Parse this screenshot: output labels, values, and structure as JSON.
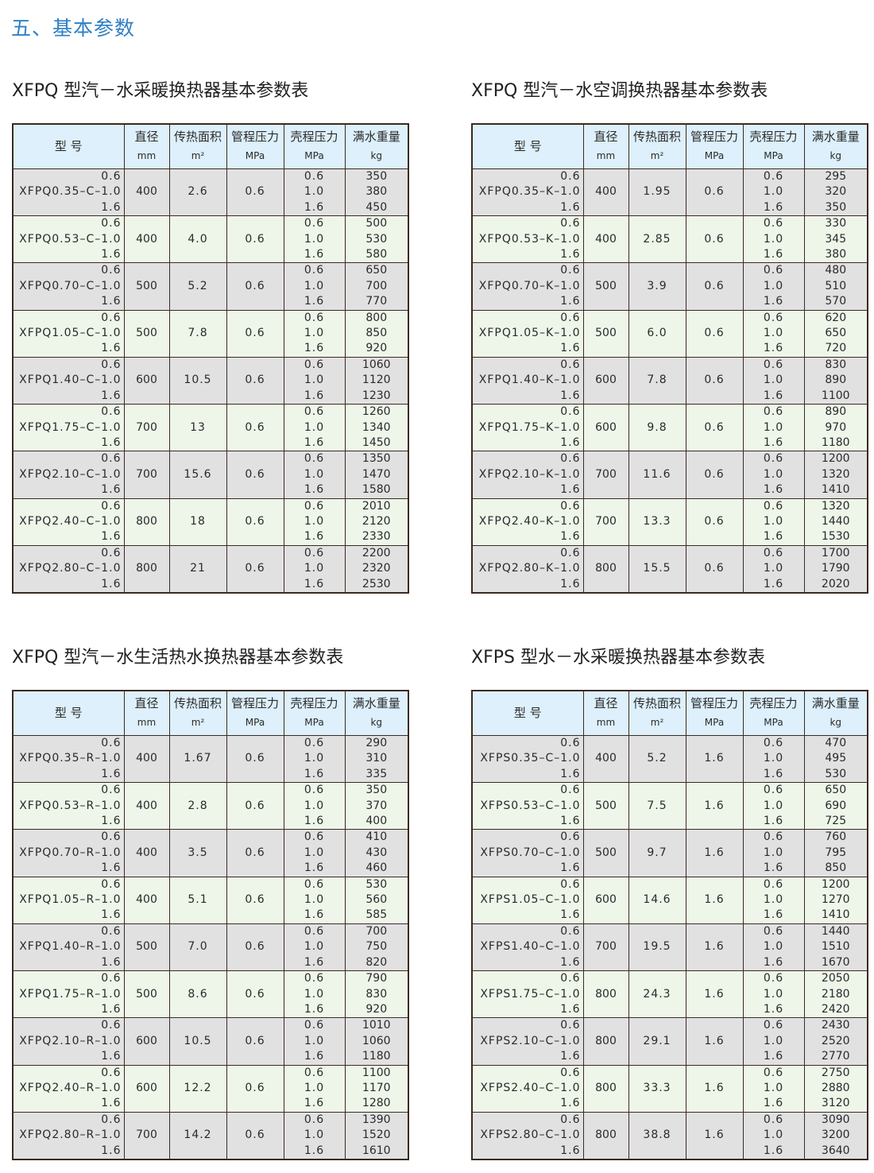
{
  "heading": "五、基本参数",
  "colors": {
    "heading": "#2f7fc4",
    "header_bg": "#ddf0fb",
    "row_gray": "#e1e1e1",
    "row_green": "#eef6ea",
    "border": "#3b2a20"
  },
  "header": {
    "model": "型  号",
    "dia": "直径",
    "dia_unit": "mm",
    "area": "传热面积",
    "area_unit": "m²",
    "tube": "管程压力",
    "tube_unit": "MPa",
    "shell": "壳程压力",
    "shell_unit": "MPa",
    "weight": "满水重量",
    "weight_unit": "kg"
  },
  "pressures": [
    "0.6",
    "1.0",
    "1.6"
  ],
  "tables": [
    {
      "title": "XFPQ 型汽－水采暖换热器基本参数表",
      "rows": [
        {
          "model": "XFPQ0.35–C–",
          "dia": "400",
          "area": "2.6",
          "tube": "0.6",
          "weights": [
            "350",
            "380",
            "450"
          ]
        },
        {
          "model": "XFPQ0.53–C–",
          "dia": "400",
          "area": "4.0",
          "tube": "0.6",
          "weights": [
            "500",
            "530",
            "580"
          ]
        },
        {
          "model": "XFPQ0.70–C–",
          "dia": "500",
          "area": "5.2",
          "tube": "0.6",
          "weights": [
            "650",
            "700",
            "770"
          ]
        },
        {
          "model": "XFPQ1.05–C–",
          "dia": "500",
          "area": "7.8",
          "tube": "0.6",
          "weights": [
            "800",
            "850",
            "920"
          ]
        },
        {
          "model": "XFPQ1.40–C–",
          "dia": "600",
          "area": "10.5",
          "tube": "0.6",
          "weights": [
            "1060",
            "1120",
            "1230"
          ]
        },
        {
          "model": "XFPQ1.75–C–",
          "dia": "700",
          "area": "13",
          "tube": "0.6",
          "weights": [
            "1260",
            "1340",
            "1450"
          ]
        },
        {
          "model": "XFPQ2.10–C–",
          "dia": "700",
          "area": "15.6",
          "tube": "0.6",
          "weights": [
            "1350",
            "1470",
            "1580"
          ]
        },
        {
          "model": "XFPQ2.40–C–",
          "dia": "800",
          "area": "18",
          "tube": "0.6",
          "weights": [
            "2010",
            "2120",
            "2330"
          ]
        },
        {
          "model": "XFPQ2.80–C–",
          "dia": "800",
          "area": "21",
          "tube": "0.6",
          "weights": [
            "2200",
            "2320",
            "2530"
          ]
        }
      ]
    },
    {
      "title": "XFPQ 型汽－水空调换热器基本参数表",
      "rows": [
        {
          "model": "XFPQ0.35–K–",
          "dia": "400",
          "area": "1.95",
          "tube": "0.6",
          "weights": [
            "295",
            "320",
            "350"
          ]
        },
        {
          "model": "XFPQ0.53–K–",
          "dia": "400",
          "area": "2.85",
          "tube": "0.6",
          "weights": [
            "330",
            "345",
            "380"
          ]
        },
        {
          "model": "XFPQ0.70–K–",
          "dia": "500",
          "area": "3.9",
          "tube": "0.6",
          "weights": [
            "480",
            "510",
            "570"
          ]
        },
        {
          "model": "XFPQ1.05–K–",
          "dia": "500",
          "area": "6.0",
          "tube": "0.6",
          "weights": [
            "620",
            "650",
            "720"
          ]
        },
        {
          "model": "XFPQ1.40–K–",
          "dia": "600",
          "area": "7.8",
          "tube": "0.6",
          "weights": [
            "830",
            "890",
            "1100"
          ]
        },
        {
          "model": "XFPQ1.75–K–",
          "dia": "600",
          "area": "9.8",
          "tube": "0.6",
          "weights": [
            "890",
            "970",
            "1180"
          ]
        },
        {
          "model": "XFPQ2.10–K–",
          "dia": "700",
          "area": "11.6",
          "tube": "0.6",
          "weights": [
            "1200",
            "1320",
            "1410"
          ]
        },
        {
          "model": "XFPQ2.40–K–",
          "dia": "700",
          "area": "13.3",
          "tube": "0.6",
          "weights": [
            "1320",
            "1440",
            "1530"
          ]
        },
        {
          "model": "XFPQ2.80–K–",
          "dia": "800",
          "area": "15.5",
          "tube": "0.6",
          "weights": [
            "1700",
            "1790",
            "2020"
          ]
        }
      ]
    },
    {
      "title": "XFPQ 型汽－水生活热水换热器基本参数表",
      "rows": [
        {
          "model": "XFPQ0.35–R–",
          "dia": "400",
          "area": "1.67",
          "tube": "0.6",
          "weights": [
            "290",
            "310",
            "335"
          ]
        },
        {
          "model": "XFPQ0.53–R–",
          "dia": "400",
          "area": "2.8",
          "tube": "0.6",
          "weights": [
            "350",
            "370",
            "400"
          ]
        },
        {
          "model": "XFPQ0.70–R–",
          "dia": "400",
          "area": "3.5",
          "tube": "0.6",
          "weights": [
            "410",
            "430",
            "460"
          ]
        },
        {
          "model": "XFPQ1.05–R–",
          "dia": "400",
          "area": "5.1",
          "tube": "0.6",
          "weights": [
            "530",
            "560",
            "585"
          ]
        },
        {
          "model": "XFPQ1.40–R–",
          "dia": "500",
          "area": "7.0",
          "tube": "0.6",
          "weights": [
            "700",
            "750",
            "820"
          ]
        },
        {
          "model": "XFPQ1.75–R–",
          "dia": "500",
          "area": "8.6",
          "tube": "0.6",
          "weights": [
            "790",
            "830",
            "920"
          ]
        },
        {
          "model": "XFPQ2.10–R–",
          "dia": "600",
          "area": "10.5",
          "tube": "0.6",
          "weights": [
            "1010",
            "1060",
            "1180"
          ]
        },
        {
          "model": "XFPQ2.40–R–",
          "dia": "600",
          "area": "12.2",
          "tube": "0.6",
          "weights": [
            "1100",
            "1170",
            "1280"
          ]
        },
        {
          "model": "XFPQ2.80–R–",
          "dia": "700",
          "area": "14.2",
          "tube": "0.6",
          "weights": [
            "1390",
            "1520",
            "1610"
          ]
        }
      ]
    },
    {
      "title": "XFPS 型水－水采暖换热器基本参数表",
      "rows": [
        {
          "model": "XFPS0.35–C–",
          "dia": "400",
          "area": "5.2",
          "tube": "1.6",
          "weights": [
            "470",
            "495",
            "530"
          ]
        },
        {
          "model": "XFPS0.53–C–",
          "dia": "500",
          "area": "7.5",
          "tube": "1.6",
          "weights": [
            "650",
            "690",
            "725"
          ]
        },
        {
          "model": "XFPS0.70–C–",
          "dia": "500",
          "area": "9.7",
          "tube": "1.6",
          "weights": [
            "760",
            "795",
            "850"
          ]
        },
        {
          "model": "XFPS1.05–C–",
          "dia": "600",
          "area": "14.6",
          "tube": "1.6",
          "weights": [
            "1200",
            "1270",
            "1410"
          ]
        },
        {
          "model": "XFPS1.40–C–",
          "dia": "700",
          "area": "19.5",
          "tube": "1.6",
          "weights": [
            "1440",
            "1510",
            "1670"
          ]
        },
        {
          "model": "XFPS1.75–C–",
          "dia": "800",
          "area": "24.3",
          "tube": "1.6",
          "weights": [
            "2050",
            "2180",
            "2420"
          ]
        },
        {
          "model": "XFPS2.10–C–",
          "dia": "800",
          "area": "29.1",
          "tube": "1.6",
          "weights": [
            "2430",
            "2520",
            "2770"
          ]
        },
        {
          "model": "XFPS2.40–C–",
          "dia": "800",
          "area": "33.3",
          "tube": "1.6",
          "weights": [
            "2750",
            "2880",
            "3120"
          ]
        },
        {
          "model": "XFPS2.80–C–",
          "dia": "800",
          "area": "38.8",
          "tube": "1.6",
          "weights": [
            "3090",
            "3200",
            "3640"
          ]
        }
      ]
    }
  ]
}
